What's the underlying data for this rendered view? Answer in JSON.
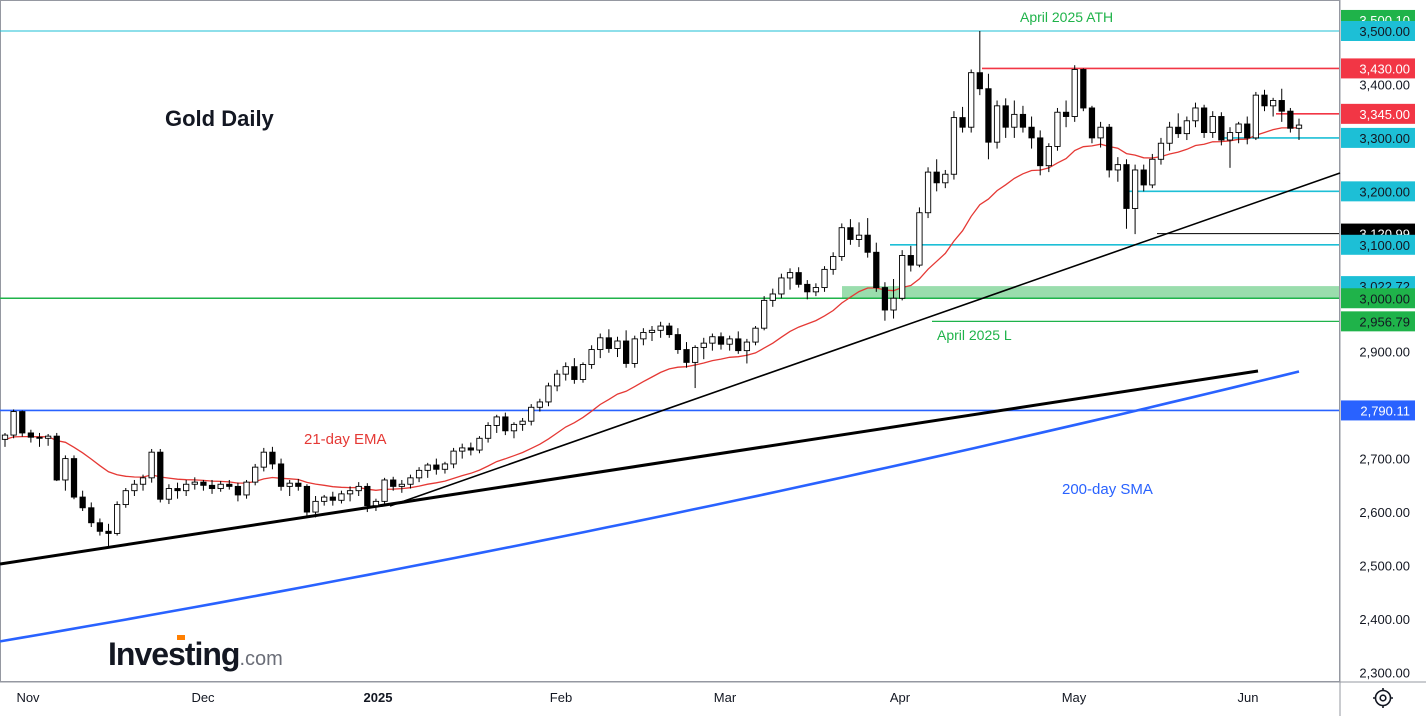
{
  "chart_data": {
    "type": "candlestick",
    "title": "Gold Daily",
    "watermark": "Investing.com",
    "x_ticks": [
      "Nov",
      "Dec",
      "2025",
      "Feb",
      "Mar",
      "Apr",
      "May",
      "Jun"
    ],
    "y_ticks": [
      "2,300.00",
      "2,400.00",
      "2,500.00",
      "2,600.00",
      "2,700.00",
      "2,800.00",
      "2,900.00",
      "3,000.00",
      "3,100.00",
      "3,200.00",
      "3,300.00",
      "3,400.00",
      "3,500.00"
    ],
    "ylim": [
      2280,
      3535
    ],
    "price_tags": [
      {
        "label": "3,500.10",
        "value": 3500.1,
        "bg": "#1fb34a",
        "fg": "#ffffff"
      },
      {
        "label": "3,500.00",
        "value": 3500.0,
        "bg": "#1dbfd6",
        "fg": "#131722"
      },
      {
        "label": "3,430.00",
        "value": 3430.0,
        "bg": "#f23645",
        "fg": "#ffffff"
      },
      {
        "label": "3,345.00",
        "value": 3345.0,
        "bg": "#f23645",
        "fg": "#ffffff"
      },
      {
        "label": "3,300.00",
        "value": 3300.0,
        "bg": "#1dbfd6",
        "fg": "#131722"
      },
      {
        "label": "3,200.00",
        "value": 3200.0,
        "bg": "#1dbfd6",
        "fg": "#131722"
      },
      {
        "label": "3,120.99",
        "value": 3120.99,
        "bg": "#000000",
        "fg": "#ffffff"
      },
      {
        "label": "3,100.00",
        "value": 3100.0,
        "bg": "#1dbfd6",
        "fg": "#131722"
      },
      {
        "label": "3,022.72",
        "value": 3022.72,
        "bg": "#1dbfd6",
        "fg": "#131722"
      },
      {
        "label": "3,000.00",
        "value": 3000.0,
        "bg": "#1fb34a",
        "fg": "#131722"
      },
      {
        "label": "2,956.79",
        "value": 2956.79,
        "bg": "#1fb34a",
        "fg": "#131722"
      },
      {
        "label": "2,790.11",
        "value": 2790.11,
        "bg": "#2962ff",
        "fg": "#ffffff"
      }
    ],
    "annotations": {
      "ath": "April 2025 ATH",
      "low": "April 2025 L",
      "ema": "21-day EMA",
      "sma": "200-day SMA"
    },
    "colors": {
      "up_candle": "#ffffff",
      "down_candle": "#000000",
      "ema": "#e53935",
      "sma": "#2962ff",
      "resistance": "#f23645",
      "support": "#1dbfd6",
      "three_thousand": "#1fb34a"
    },
    "candles": [
      [
        2736,
        2748,
        2722,
        2744
      ],
      [
        2744,
        2792,
        2738,
        2788
      ],
      [
        2788,
        2790,
        2741,
        2748
      ],
      [
        2748,
        2754,
        2730,
        2740
      ],
      [
        2740,
        2748,
        2722,
        2738
      ],
      [
        2738,
        2746,
        2724,
        2742
      ],
      [
        2742,
        2748,
        2658,
        2660
      ],
      [
        2660,
        2706,
        2640,
        2700
      ],
      [
        2700,
        2706,
        2624,
        2628
      ],
      [
        2628,
        2640,
        2602,
        2608
      ],
      [
        2608,
        2618,
        2572,
        2580
      ],
      [
        2580,
        2588,
        2556,
        2564
      ],
      [
        2564,
        2578,
        2534,
        2560
      ],
      [
        2560,
        2620,
        2556,
        2614
      ],
      [
        2614,
        2645,
        2608,
        2640
      ],
      [
        2640,
        2660,
        2630,
        2652
      ],
      [
        2652,
        2670,
        2640,
        2664
      ],
      [
        2664,
        2718,
        2655,
        2712
      ],
      [
        2712,
        2718,
        2618,
        2624
      ],
      [
        2624,
        2652,
        2615,
        2644
      ],
      [
        2644,
        2655,
        2625,
        2640
      ],
      [
        2640,
        2660,
        2630,
        2652
      ],
      [
        2652,
        2665,
        2642,
        2656
      ],
      [
        2656,
        2660,
        2640,
        2650
      ],
      [
        2650,
        2660,
        2634,
        2644
      ],
      [
        2644,
        2658,
        2638,
        2652
      ],
      [
        2652,
        2660,
        2642,
        2648
      ],
      [
        2648,
        2655,
        2620,
        2632
      ],
      [
        2632,
        2660,
        2625,
        2656
      ],
      [
        2656,
        2690,
        2650,
        2684
      ],
      [
        2684,
        2720,
        2676,
        2712
      ],
      [
        2712,
        2722,
        2680,
        2690
      ],
      [
        2690,
        2700,
        2640,
        2648
      ],
      [
        2648,
        2660,
        2630,
        2654
      ],
      [
        2654,
        2662,
        2640,
        2648
      ],
      [
        2648,
        2652,
        2590,
        2600
      ],
      [
        2600,
        2630,
        2590,
        2620
      ],
      [
        2620,
        2632,
        2612,
        2628
      ],
      [
        2628,
        2638,
        2612,
        2622
      ],
      [
        2622,
        2640,
        2616,
        2634
      ],
      [
        2634,
        2648,
        2620,
        2640
      ],
      [
        2640,
        2656,
        2630,
        2648
      ],
      [
        2648,
        2654,
        2600,
        2612
      ],
      [
        2612,
        2625,
        2602,
        2620
      ],
      [
        2620,
        2664,
        2616,
        2660
      ],
      [
        2660,
        2666,
        2640,
        2648
      ],
      [
        2648,
        2660,
        2636,
        2652
      ],
      [
        2652,
        2670,
        2644,
        2664
      ],
      [
        2664,
        2684,
        2656,
        2678
      ],
      [
        2678,
        2692,
        2664,
        2688
      ],
      [
        2688,
        2700,
        2670,
        2680
      ],
      [
        2680,
        2694,
        2672,
        2690
      ],
      [
        2690,
        2720,
        2682,
        2714
      ],
      [
        2714,
        2728,
        2700,
        2720
      ],
      [
        2720,
        2730,
        2706,
        2716
      ],
      [
        2716,
        2742,
        2710,
        2738
      ],
      [
        2738,
        2768,
        2730,
        2762
      ],
      [
        2762,
        2782,
        2748,
        2778
      ],
      [
        2778,
        2786,
        2744,
        2752
      ],
      [
        2752,
        2768,
        2738,
        2764
      ],
      [
        2764,
        2776,
        2752,
        2770
      ],
      [
        2770,
        2802,
        2762,
        2796
      ],
      [
        2796,
        2812,
        2788,
        2806
      ],
      [
        2806,
        2842,
        2798,
        2836
      ],
      [
        2836,
        2866,
        2826,
        2858
      ],
      [
        2858,
        2880,
        2846,
        2872
      ],
      [
        2872,
        2888,
        2840,
        2848
      ],
      [
        2848,
        2880,
        2842,
        2876
      ],
      [
        2876,
        2912,
        2868,
        2904
      ],
      [
        2904,
        2934,
        2888,
        2926
      ],
      [
        2926,
        2942,
        2898,
        2906
      ],
      [
        2906,
        2928,
        2890,
        2920
      ],
      [
        2920,
        2940,
        2870,
        2878
      ],
      [
        2878,
        2930,
        2870,
        2924
      ],
      [
        2924,
        2944,
        2912,
        2936
      ],
      [
        2936,
        2948,
        2920,
        2940
      ],
      [
        2940,
        2956,
        2926,
        2948
      ],
      [
        2948,
        2954,
        2926,
        2932
      ],
      [
        2932,
        2944,
        2896,
        2904
      ],
      [
        2904,
        2918,
        2870,
        2880
      ],
      [
        2880,
        2912,
        2832,
        2908
      ],
      [
        2908,
        2926,
        2886,
        2916
      ],
      [
        2916,
        2934,
        2902,
        2928
      ],
      [
        2928,
        2936,
        2904,
        2914
      ],
      [
        2914,
        2930,
        2902,
        2924
      ],
      [
        2924,
        2938,
        2896,
        2902
      ],
      [
        2902,
        2924,
        2878,
        2918
      ],
      [
        2918,
        2948,
        2912,
        2944
      ],
      [
        2944,
        3004,
        2940,
        2996
      ],
      [
        2996,
        3018,
        2984,
        3008
      ],
      [
        3008,
        3046,
        3000,
        3038
      ],
      [
        3038,
        3056,
        3016,
        3048
      ],
      [
        3048,
        3058,
        3020,
        3026
      ],
      [
        3026,
        3034,
        2998,
        3012
      ],
      [
        3012,
        3028,
        3004,
        3020
      ],
      [
        3020,
        3060,
        3012,
        3054
      ],
      [
        3054,
        3086,
        3044,
        3078
      ],
      [
        3078,
        3140,
        3070,
        3132
      ],
      [
        3132,
        3148,
        3100,
        3110
      ],
      [
        3110,
        3142,
        3096,
        3118
      ],
      [
        3118,
        3150,
        3076,
        3086
      ],
      [
        3086,
        3104,
        3012,
        3020
      ],
      [
        3020,
        3030,
        2958,
        2978
      ],
      [
        2978,
        3036,
        2962,
        3000
      ],
      [
        3000,
        3090,
        2996,
        3080
      ],
      [
        3080,
        3098,
        3050,
        3062
      ],
      [
        3062,
        3170,
        3058,
        3160
      ],
      [
        3160,
        3245,
        3150,
        3236
      ],
      [
        3236,
        3260,
        3200,
        3216
      ],
      [
        3216,
        3240,
        3206,
        3232
      ],
      [
        3232,
        3350,
        3222,
        3338
      ],
      [
        3338,
        3358,
        3310,
        3320
      ],
      [
        3320,
        3428,
        3310,
        3422
      ],
      [
        3422,
        3500,
        3380,
        3392
      ],
      [
        3392,
        3420,
        3260,
        3292
      ],
      [
        3292,
        3370,
        3280,
        3360
      ],
      [
        3360,
        3374,
        3300,
        3320
      ],
      [
        3320,
        3370,
        3300,
        3344
      ],
      [
        3344,
        3360,
        3310,
        3320
      ],
      [
        3320,
        3340,
        3280,
        3300
      ],
      [
        3300,
        3314,
        3230,
        3248
      ],
      [
        3248,
        3290,
        3236,
        3284
      ],
      [
        3284,
        3356,
        3276,
        3348
      ],
      [
        3348,
        3370,
        3320,
        3340
      ],
      [
        3340,
        3436,
        3330,
        3428
      ],
      [
        3428,
        3430,
        3350,
        3356
      ],
      [
        3356,
        3360,
        3290,
        3300
      ],
      [
        3300,
        3330,
        3282,
        3320
      ],
      [
        3320,
        3326,
        3226,
        3240
      ],
      [
        3240,
        3264,
        3218,
        3250
      ],
      [
        3250,
        3260,
        3130,
        3168
      ],
      [
        3168,
        3250,
        3120,
        3240
      ],
      [
        3240,
        3250,
        3200,
        3212
      ],
      [
        3212,
        3270,
        3206,
        3260
      ],
      [
        3260,
        3300,
        3250,
        3290
      ],
      [
        3290,
        3330,
        3276,
        3320
      ],
      [
        3320,
        3346,
        3300,
        3308
      ],
      [
        3308,
        3340,
        3296,
        3332
      ],
      [
        3332,
        3366,
        3320,
        3356
      ],
      [
        3356,
        3362,
        3300,
        3310
      ],
      [
        3310,
        3350,
        3300,
        3340
      ],
      [
        3340,
        3348,
        3286,
        3296
      ],
      [
        3296,
        3320,
        3244,
        3310
      ],
      [
        3310,
        3330,
        3290,
        3326
      ],
      [
        3326,
        3340,
        3288,
        3300
      ],
      [
        3300,
        3386,
        3296,
        3380
      ],
      [
        3380,
        3390,
        3350,
        3360
      ],
      [
        3360,
        3375,
        3340,
        3370
      ],
      [
        3370,
        3392,
        3330,
        3350
      ],
      [
        3350,
        3356,
        3310,
        3318
      ],
      [
        3318,
        3336,
        3296,
        3324
      ]
    ]
  }
}
